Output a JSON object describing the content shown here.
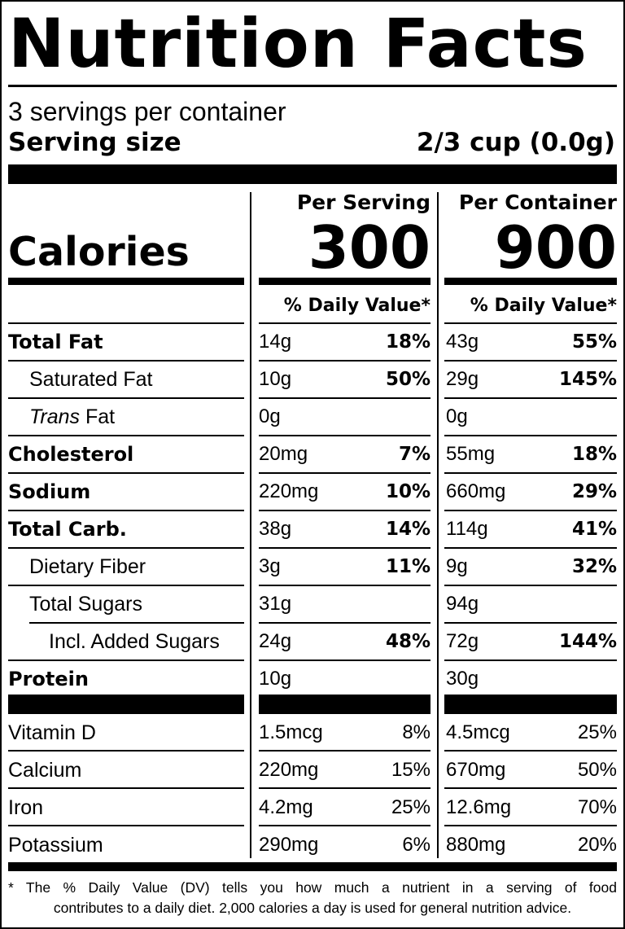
{
  "title": "Nutrition Facts",
  "servings_per_container": "3 servings per container",
  "serving_size": {
    "label": "Serving size",
    "value": "2/3 cup (0.0g)"
  },
  "calories": {
    "label": "Calories",
    "per_serving_header": "Per Serving",
    "per_container_header": "Per Container",
    "per_serving": "300",
    "per_container": "900"
  },
  "daily_value_header": "% Daily Value*",
  "nutrients": [
    {
      "name": "Total Fat",
      "style": "bold",
      "serving_amount": "14g",
      "serving_dv": "18%",
      "container_amount": "43g",
      "container_dv": "55%"
    },
    {
      "name": "Saturated Fat",
      "style": "indent",
      "serving_amount": "10g",
      "serving_dv": "50%",
      "container_amount": "29g",
      "container_dv": "145%"
    },
    {
      "name_italic": "Trans",
      "name": " Fat",
      "style": "indent",
      "serving_amount": "0g",
      "serving_dv": "",
      "container_amount": "0g",
      "container_dv": ""
    },
    {
      "name": "Cholesterol",
      "style": "bold",
      "serving_amount": "20mg",
      "serving_dv": "7%",
      "container_amount": "55mg",
      "container_dv": "18%"
    },
    {
      "name": "Sodium",
      "style": "bold",
      "serving_amount": "220mg",
      "serving_dv": "10%",
      "container_amount": "660mg",
      "container_dv": "29%"
    },
    {
      "name": "Total Carb.",
      "style": "bold",
      "serving_amount": "38g",
      "serving_dv": "14%",
      "container_amount": "114g",
      "container_dv": "41%"
    },
    {
      "name": "Dietary Fiber",
      "style": "indent",
      "serving_amount": "3g",
      "serving_dv": "11%",
      "container_amount": "9g",
      "container_dv": "32%"
    },
    {
      "name": "Total Sugars",
      "style": "indent",
      "serving_amount": "31g",
      "serving_dv": "",
      "container_amount": "94g",
      "container_dv": ""
    },
    {
      "name": "Incl. Added Sugars",
      "style": "indent2",
      "serving_amount": "24g",
      "serving_dv": "48%",
      "container_amount": "72g",
      "container_dv": "144%"
    },
    {
      "name": "Protein",
      "style": "bold",
      "serving_amount": "10g",
      "serving_dv": "",
      "container_amount": "30g",
      "container_dv": ""
    }
  ],
  "vitamins": [
    {
      "name": "Vitamin D",
      "serving_amount": "1.5mcg",
      "serving_dv": "8%",
      "container_amount": "4.5mcg",
      "container_dv": "25%"
    },
    {
      "name": "Calcium",
      "serving_amount": "220mg",
      "serving_dv": "15%",
      "container_amount": "670mg",
      "container_dv": "50%"
    },
    {
      "name": "Iron",
      "serving_amount": "4.2mg",
      "serving_dv": "25%",
      "container_amount": "12.6mg",
      "container_dv": "70%"
    },
    {
      "name": "Potassium",
      "serving_amount": "290mg",
      "serving_dv": "6%",
      "container_amount": "880mg",
      "container_dv": "20%"
    }
  ],
  "footnote": {
    "line1": "* The % Daily Value (DV) tells you how much a nutrient in a serving of food",
    "line2": "contributes to a daily diet. 2,000 calories a day is used for general nutrition advice."
  }
}
